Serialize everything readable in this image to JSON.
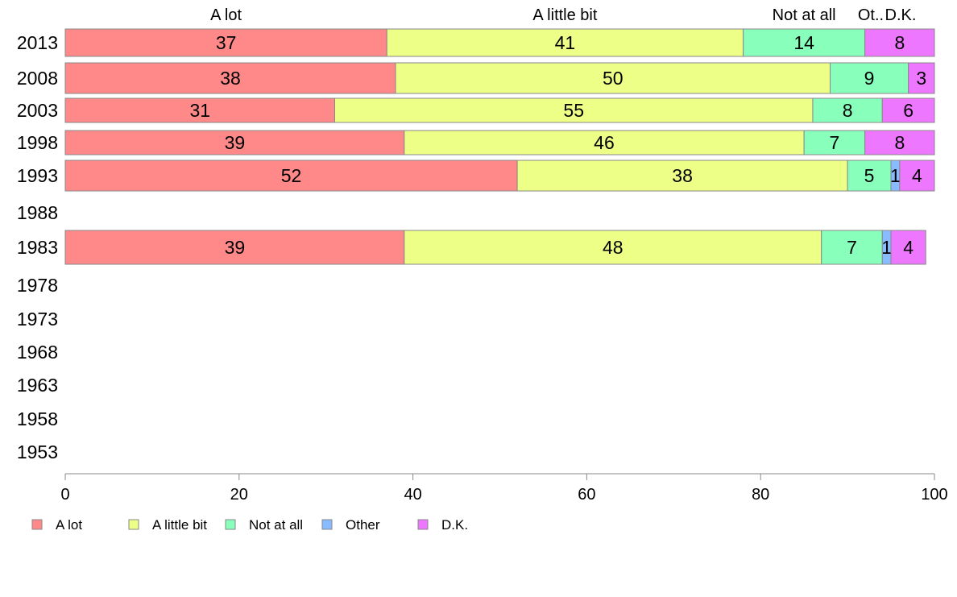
{
  "chart_data": {
    "type": "bar",
    "orientation": "horizontal",
    "stacked": true,
    "categories": [
      "2013",
      "2008",
      "2003",
      "1998",
      "1993",
      "1988",
      "1983",
      "1978",
      "1973",
      "1968",
      "1963",
      "1958",
      "1953"
    ],
    "series": [
      {
        "name": "A lot",
        "color": "#ff8888",
        "values": [
          37,
          38,
          31,
          39,
          52,
          null,
          39,
          null,
          null,
          null,
          null,
          null,
          null
        ]
      },
      {
        "name": "A little bit",
        "color": "#eeff88",
        "values": [
          41,
          50,
          55,
          46,
          38,
          null,
          48,
          null,
          null,
          null,
          null,
          null,
          null
        ]
      },
      {
        "name": "Not at all",
        "color": "#88ffbb",
        "values": [
          14,
          9,
          8,
          7,
          5,
          null,
          7,
          null,
          null,
          null,
          null,
          null,
          null
        ]
      },
      {
        "name": "Other",
        "color": "#88bbff",
        "values": [
          0,
          0,
          0,
          0,
          1,
          null,
          1,
          null,
          null,
          null,
          null,
          null,
          null
        ]
      },
      {
        "name": "D.K.",
        "color": "#ee77ff",
        "values": [
          8,
          3,
          6,
          8,
          4,
          null,
          4,
          null,
          null,
          null,
          null,
          null,
          null
        ]
      }
    ],
    "top_labels": [
      "A lot",
      "A little bit",
      "Not at all",
      "Ot..",
      "D.K."
    ],
    "xlim": [
      0,
      100
    ],
    "xticks": [
      0,
      20,
      40,
      60,
      80,
      100
    ],
    "grid": false,
    "legend_position": "bottom-left"
  }
}
